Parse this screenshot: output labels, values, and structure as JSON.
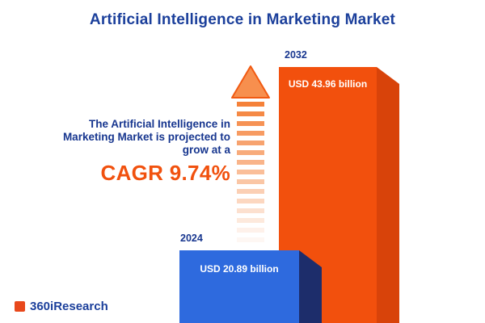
{
  "title": "Artificial Intelligence in Marketing Market",
  "annotation": {
    "lines": [
      "The Artificial Intelligence in",
      "Marketing Market is projected to",
      "grow at a"
    ],
    "cagr_label": "CAGR 9.74%"
  },
  "bars": {
    "b2024": {
      "year": "2024",
      "value_label": "USD 20.89 billion"
    },
    "b2032": {
      "year": "2032",
      "value_label": "USD 43.96 billion"
    }
  },
  "footer": {
    "logo_text": "360iResearch"
  },
  "colors": {
    "navy": "#17368f",
    "title_blue": "#1b3f9b",
    "orange_front": "#f2500d",
    "orange_side": "#d8430a",
    "blue_front": "#2e6ade",
    "blue_side": "#1d2d6b",
    "arrow": "#f47a2e",
    "arrow_head_fill": "#f78f4e",
    "arrow_head_stroke": "#f15a12",
    "cagr_orange": "#f1510e",
    "logo_mark": "#e8481c"
  },
  "chart_data": {
    "type": "bar",
    "title": "Artificial Intelligence in Marketing Market",
    "categories": [
      "2024",
      "2032"
    ],
    "values": [
      20.89,
      43.96
    ],
    "unit": "USD billion",
    "value_labels": [
      "USD 20.89 billion",
      "USD 43.96 billion"
    ],
    "cagr_percent": 9.74,
    "cagr_text": "CAGR 9.74%",
    "annotation": "The Artificial Intelligence in Marketing Market is projected to grow at a CAGR 9.74%",
    "legend": "none",
    "bar_colors": {
      "2024": "#2e6ade",
      "2032": "#f2500d"
    },
    "note_scale": "bars not drawn to numeric scale in source image"
  }
}
